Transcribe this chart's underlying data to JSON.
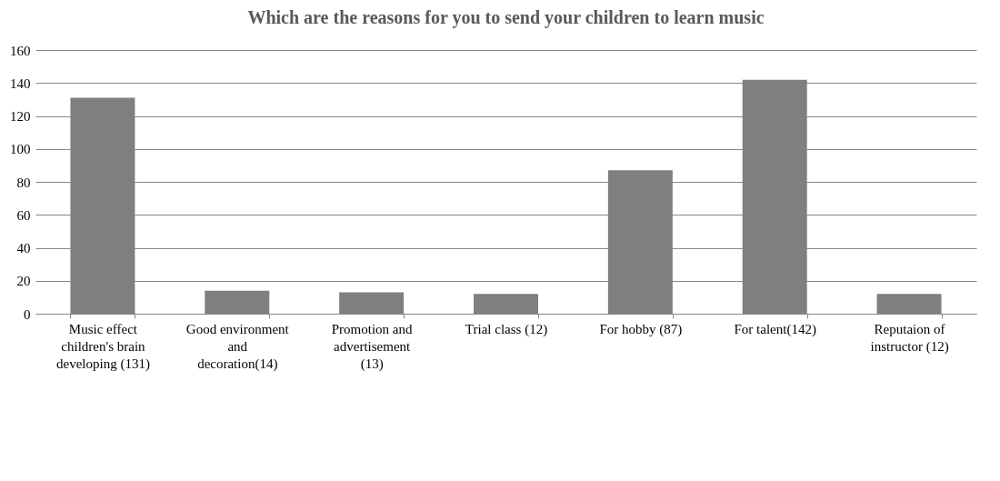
{
  "chart_data": {
    "type": "bar",
    "title": "Which are the reasons for you to send your children to learn music",
    "categories": [
      "Music effect children's brain developing (131)",
      "Good environment and decoration(14)",
      "Promotion and advertisement (13)",
      "Trial class (12)",
      "For hobby (87)",
      "For  talent(142)",
      "Reputaion of instructor (12)"
    ],
    "values": [
      131,
      14,
      13,
      12,
      87,
      142,
      12
    ],
    "color": "#7f7f7f",
    "ylim": [
      0,
      160
    ],
    "yticks": [
      0,
      20,
      40,
      60,
      80,
      100,
      120,
      140,
      160
    ],
    "grid": "y"
  }
}
